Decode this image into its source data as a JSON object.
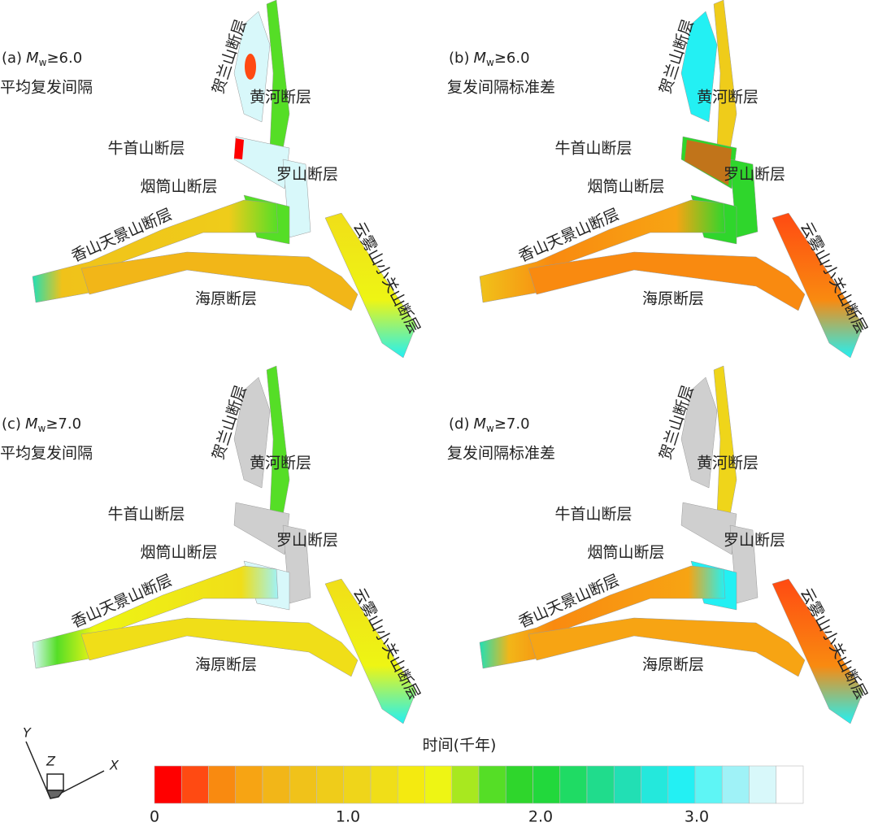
{
  "panels": [
    {
      "label": "(a)",
      "magnitude_symbol": "M",
      "magnitude_subscript": "w",
      "magnitude_threshold": "≥6.0",
      "subtitle": "平均复发间隔",
      "faults": [
        "贺兰山断层",
        "黄河断层",
        "牛首山断层",
        "罗山断层",
        "烟筒山断层",
        "香山天景山断层",
        "海原断层",
        "云雾山小关山断层"
      ]
    },
    {
      "label": "(b)",
      "magnitude_symbol": "M",
      "magnitude_subscript": "w",
      "magnitude_threshold": "≥6.0",
      "subtitle": "复发间隔标准差",
      "faults": [
        "贺兰山断层",
        "黄河断层",
        "牛首山断层",
        "罗山断层",
        "烟筒山断层",
        "香山天景山断层",
        "海原断层",
        "云雾山小关山断层"
      ]
    },
    {
      "label": "(c)",
      "magnitude_symbol": "M",
      "magnitude_subscript": "w",
      "magnitude_threshold": "≥7.0",
      "subtitle": "平均复发间隔",
      "faults": [
        "贺兰山断层",
        "黄河断层",
        "牛首山断层",
        "罗山断层",
        "烟筒山断层",
        "香山天景山断层",
        "海原断层",
        "云雾山小关山断层"
      ]
    },
    {
      "label": "(d)",
      "magnitude_symbol": "M",
      "magnitude_subscript": "w",
      "magnitude_threshold": "≥7.0",
      "subtitle": "复发间隔标准差",
      "faults": [
        "贺兰山断层",
        "黄河断层",
        "牛首山断层",
        "罗山断层",
        "烟筒山断层",
        "香山天景山断层",
        "海原断层",
        "云雾山小关山断层"
      ]
    }
  ],
  "colorbar": {
    "title": "时间(千年)",
    "ticks": [
      "0",
      "1.0",
      "2.0",
      "3.0"
    ]
  },
  "axes_triad": {
    "y": "Y",
    "z": "Z",
    "x": "X"
  }
}
